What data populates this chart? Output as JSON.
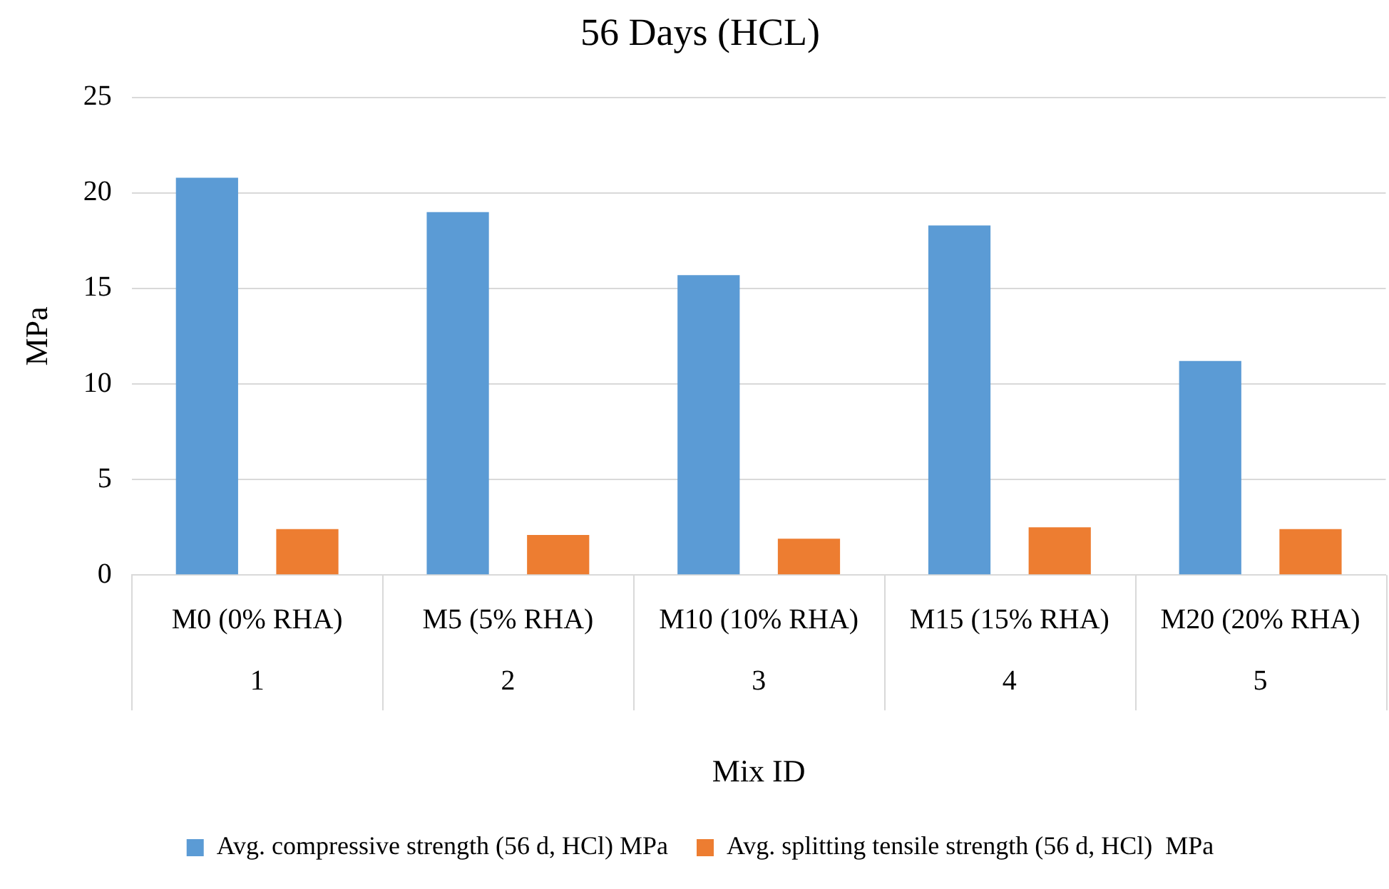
{
  "chart_data": {
    "type": "bar",
    "title": "56 Days (HCL)",
    "xlabel": "Mix ID",
    "ylabel": "MPa",
    "categories": [
      "M0 (0% RHA)",
      "M5 (5% RHA)",
      "M10 (10% RHA)",
      "M15 (15% RHA)",
      "M20 (20% RHA)"
    ],
    "series": [
      {
        "name": "Avg. compressive strength (56 d, HCl) MPa",
        "color": "#5b9bd5",
        "values": [
          20.8,
          19.0,
          15.7,
          18.3,
          11.2
        ]
      },
      {
        "name": "Avg. splitting tensile strength (56 d, HCl)  MPa",
        "color": "#ed7d31",
        "values": [
          2.4,
          2.1,
          1.9,
          2.5,
          2.4
        ]
      }
    ],
    "annotations": [
      "1",
      "2",
      "3",
      "4",
      "5"
    ],
    "ylim": [
      0,
      25
    ],
    "yticks": [
      0,
      5,
      10,
      15,
      20,
      25
    ],
    "grid": "y",
    "legend": "bottom"
  }
}
